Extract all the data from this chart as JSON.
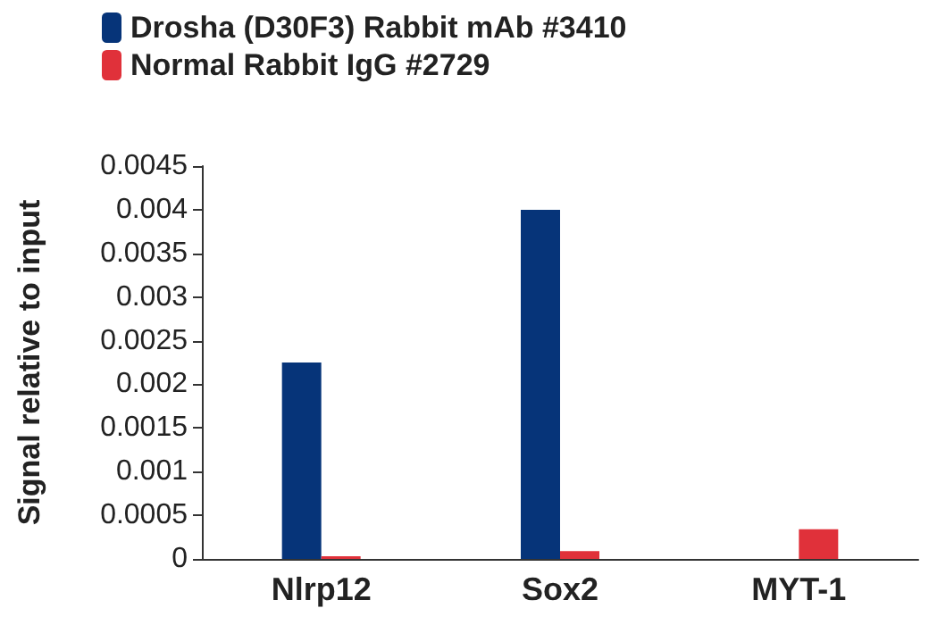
{
  "chart_data": {
    "type": "bar",
    "ylabel": "Signal relative to input",
    "categories": [
      "Nlrp12",
      "Sox2",
      "MYT-1"
    ],
    "series": [
      {
        "name": "Drosha (D30F3) Rabbit mAb #3410",
        "color": "#063479",
        "values": [
          0.00225,
          0.004,
          0
        ]
      },
      {
        "name": "Normal Rabbit IgG #2729",
        "color": "#e0313a",
        "values": [
          3e-05,
          9e-05,
          0.00034
        ]
      }
    ],
    "ylim": [
      0,
      0.0045
    ],
    "yticks": [
      0,
      0.0005,
      0.001,
      0.0015,
      0.002,
      0.0025,
      0.003,
      0.0035,
      0.004,
      0.0045
    ],
    "grid": false,
    "legend": "top left"
  }
}
